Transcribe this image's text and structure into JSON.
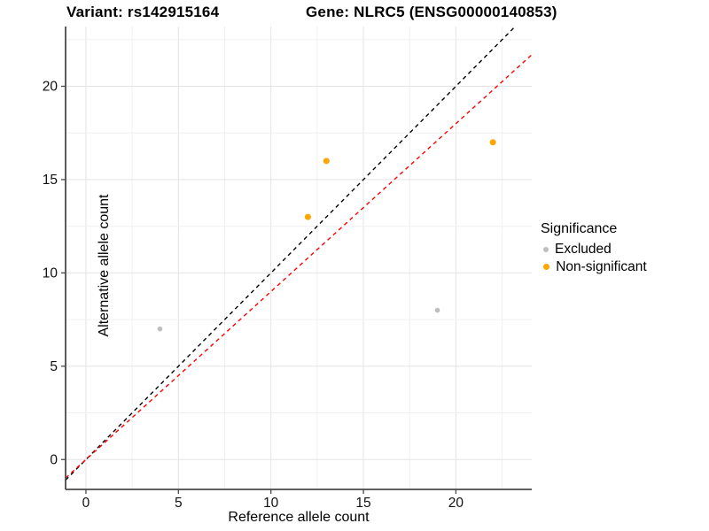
{
  "titles": {
    "variant": "Variant: rs142915164",
    "gene": "Gene: NLRC5 (ENSG00000140853)"
  },
  "legend": {
    "title": "Significance",
    "items": [
      {
        "label": "Excluded",
        "color": "#BEBEBE",
        "dot_radius": 3
      },
      {
        "label": "Non-significant",
        "color": "#FFA500",
        "dot_radius": 3.6
      }
    ]
  },
  "chart_data": {
    "type": "scatter",
    "title": "",
    "xlabel": "Reference allele count",
    "ylabel": "Alternative allele count",
    "xlim": [
      -1.1,
      24.1
    ],
    "ylim": [
      -1.6,
      23.2
    ],
    "x_ticks": [
      0,
      5,
      10,
      15,
      20
    ],
    "y_ticks": [
      0,
      5,
      10,
      15,
      20
    ],
    "minor_grid_step": 2.5,
    "grid": true,
    "legend_position": "right",
    "series": [
      {
        "name": "Excluded",
        "color": "#BEBEBE",
        "point_radius": 2.8,
        "points": [
          {
            "x": 4,
            "y": 7
          },
          {
            "x": 19,
            "y": 8
          }
        ]
      },
      {
        "name": "Non-significant",
        "color": "#FFA500",
        "point_radius": 3.5,
        "points": [
          {
            "x": 12,
            "y": 13
          },
          {
            "x": 13,
            "y": 16
          },
          {
            "x": 22,
            "y": 17
          }
        ]
      }
    ],
    "lines": [
      {
        "name": "identity-line",
        "slope": 1.0,
        "intercept": 0,
        "color": "#000000",
        "style": "dashed"
      },
      {
        "name": "fit-line",
        "slope": 0.9,
        "intercept": 0,
        "color": "#FF0000",
        "style": "dashed"
      }
    ],
    "colors": {
      "grid_major": "#E4E4E4",
      "grid_minor": "#F0F0F0",
      "axis_line": "#4a4a4a",
      "tick_label": "#111111"
    }
  }
}
